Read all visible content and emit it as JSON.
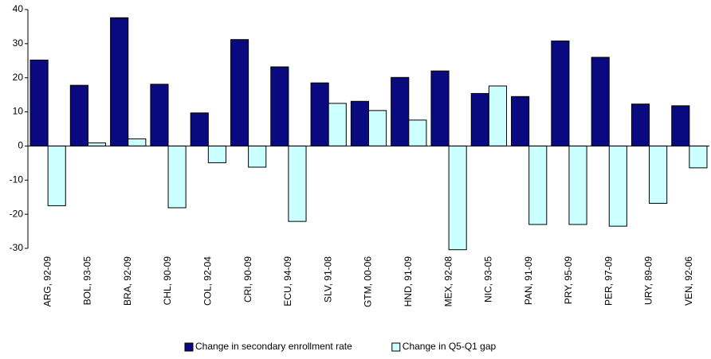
{
  "chart_data": {
    "type": "bar",
    "categories": [
      "ARG, 92-09",
      "BOL, 93-05",
      "BRA, 92-09",
      "CHL, 90-09",
      "COL, 92-04",
      "CRI, 90-09",
      "ECU, 94-09",
      "SLV, 91-08",
      "GTM, 00-06",
      "HND, 91-09",
      "MEX, 92-08",
      "NIC, 93-05",
      "PAN, 91-09",
      "PRY, 95-09",
      "PER, 97-09",
      "URY, 89-09",
      "VEN, 92-06"
    ],
    "series": [
      {
        "name": "Change in secondary enrollment rate",
        "color": "#0a0a80",
        "values": [
          25.2,
          17.8,
          37.6,
          18.1,
          9.7,
          31.2,
          23.2,
          18.5,
          13.1,
          20.1,
          22.0,
          15.4,
          14.5,
          30.8,
          26.0,
          12.3,
          11.8
        ]
      },
      {
        "name": "Change in Q5-Q1 gap",
        "color": "#ccffff",
        "values": [
          -17.5,
          0.9,
          2.1,
          -18.1,
          -4.9,
          -6.2,
          -22.1,
          12.5,
          10.4,
          7.6,
          -30.4,
          17.6,
          -23.0,
          -23.0,
          -23.5,
          -16.8,
          -6.4
        ]
      }
    ],
    "ylim": [
      -30,
      40
    ],
    "yticks": [
      -30,
      -20,
      -10,
      0,
      10,
      20,
      30,
      40
    ],
    "grid": false,
    "legend": "bottom"
  }
}
